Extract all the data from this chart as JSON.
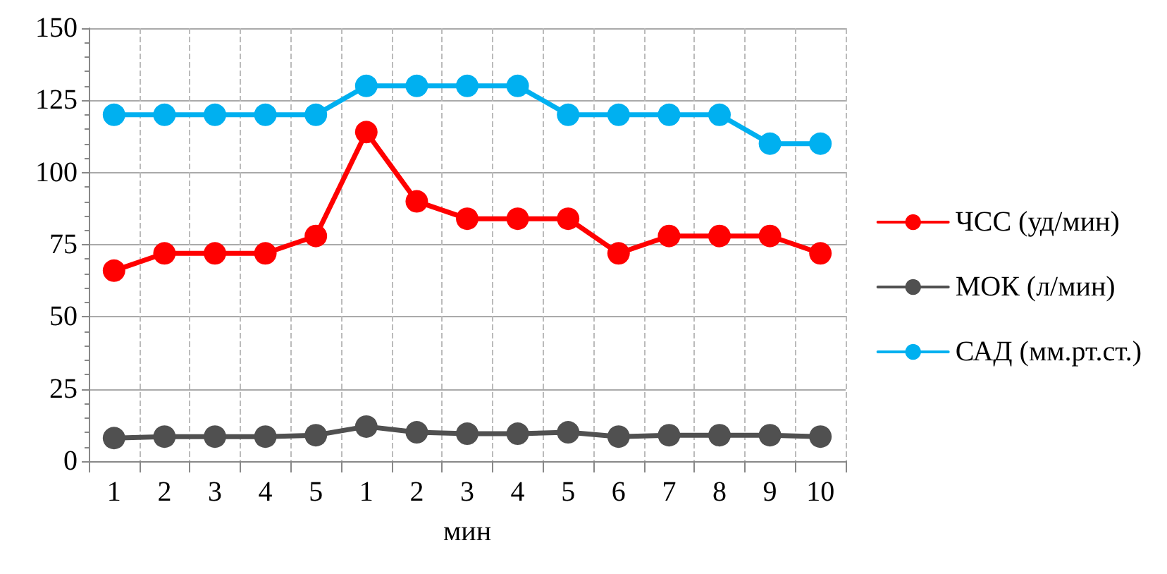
{
  "chart_data": {
    "type": "line",
    "xlabel": "мин",
    "categories": [
      "1",
      "2",
      "3",
      "4",
      "5",
      "1",
      "2",
      "3",
      "4",
      "5",
      "6",
      "7",
      "8",
      "9",
      "10"
    ],
    "series": [
      {
        "name": "ЧСС (уд/мин)",
        "color": "#ff0000",
        "values": [
          66,
          72,
          72,
          72,
          78,
          114,
          90,
          84,
          84,
          84,
          72,
          78,
          78,
          78,
          72
        ]
      },
      {
        "name": "МОК (л/мин)",
        "color": "#505050",
        "values": [
          8,
          8.5,
          8.5,
          8.5,
          9,
          12,
          10,
          9.5,
          9.5,
          10,
          8.5,
          9,
          9,
          9,
          8.5
        ]
      },
      {
        "name": "САД (мм.рт.ст.)",
        "color": "#00b0f0",
        "values": [
          120,
          120,
          120,
          120,
          120,
          130,
          130,
          130,
          130,
          120,
          120,
          120,
          120,
          110,
          110
        ]
      }
    ],
    "ylim": [
      0,
      150
    ],
    "yticks": [
      0,
      25,
      50,
      75,
      100,
      125,
      150
    ],
    "grid": true,
    "legend": "right",
    "marker": "circle",
    "line_style": "solid"
  }
}
